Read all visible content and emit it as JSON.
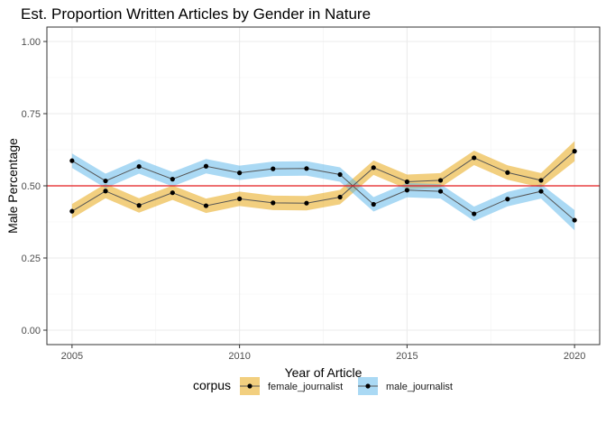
{
  "chart_data": {
    "type": "line",
    "title": "Est. Proportion Written Articles by Gender in Nature",
    "xlabel": "Year of Article",
    "ylabel": "Male Percentage",
    "x": [
      2005,
      2006,
      2007,
      2008,
      2009,
      2010,
      2011,
      2012,
      2013,
      2014,
      2015,
      2016,
      2017,
      2018,
      2019,
      2020
    ],
    "xlim": [
      2004.25,
      2020.75
    ],
    "ylim": [
      -0.05,
      1.05
    ],
    "xticks": [
      2005,
      2010,
      2015,
      2020
    ],
    "xtick_labels": [
      "2005",
      "2010",
      "2015",
      "2020"
    ],
    "yticks": [
      0.0,
      0.25,
      0.5,
      0.75,
      1.0
    ],
    "ytick_labels": [
      "0.00",
      "0.25",
      "0.50",
      "0.75",
      "1.00"
    ],
    "grid": true,
    "reference_line": {
      "y": 0.5,
      "color": "#e41a1c"
    },
    "series": [
      {
        "name": "female_journalist",
        "color": "#e69f00",
        "values": [
          0.412,
          0.482,
          0.432,
          0.476,
          0.431,
          0.455,
          0.441,
          0.44,
          0.461,
          0.563,
          0.514,
          0.519,
          0.597,
          0.546,
          0.519,
          0.62
        ],
        "lower": [
          0.387,
          0.457,
          0.407,
          0.451,
          0.406,
          0.43,
          0.416,
          0.415,
          0.436,
          0.538,
          0.489,
          0.494,
          0.572,
          0.521,
          0.494,
          0.585
        ],
        "upper": [
          0.437,
          0.507,
          0.457,
          0.501,
          0.456,
          0.48,
          0.466,
          0.465,
          0.486,
          0.588,
          0.539,
          0.544,
          0.622,
          0.571,
          0.544,
          0.655
        ]
      },
      {
        "name": "male_journalist",
        "color": "#56b4e9",
        "values": [
          0.587,
          0.517,
          0.567,
          0.523,
          0.568,
          0.545,
          0.559,
          0.56,
          0.539,
          0.436,
          0.485,
          0.481,
          0.403,
          0.454,
          0.481,
          0.381
        ],
        "lower": [
          0.562,
          0.492,
          0.542,
          0.498,
          0.543,
          0.52,
          0.534,
          0.535,
          0.514,
          0.411,
          0.46,
          0.456,
          0.378,
          0.429,
          0.456,
          0.346
        ],
        "upper": [
          0.612,
          0.542,
          0.592,
          0.548,
          0.593,
          0.57,
          0.584,
          0.585,
          0.564,
          0.461,
          0.51,
          0.506,
          0.428,
          0.479,
          0.506,
          0.416
        ]
      }
    ],
    "legend": {
      "title": "corpus",
      "position": "bottom"
    }
  }
}
